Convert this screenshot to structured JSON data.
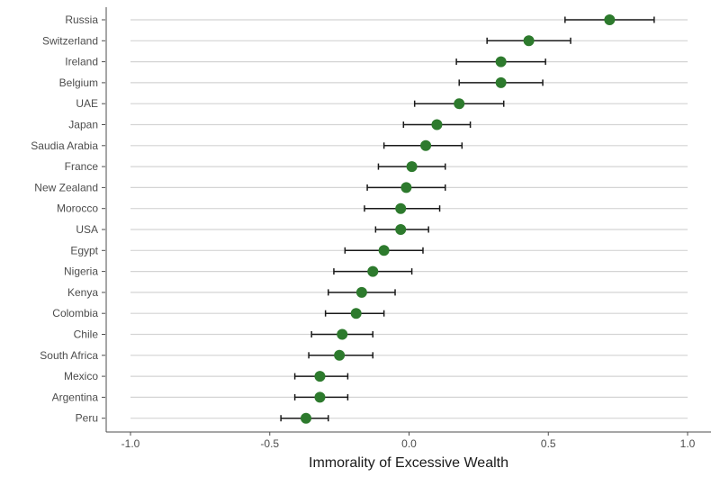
{
  "chart_data": {
    "type": "scatter",
    "title": "",
    "xlabel": "Immorality of Excessive Wealth",
    "ylabel": "",
    "xlim": [
      -1.05,
      1.05
    ],
    "x_ticks": [
      -1.0,
      -0.5,
      0.0,
      0.5,
      1.0
    ],
    "x_tick_labels": [
      "-1.0",
      "-0.5",
      "0.0",
      "0.5",
      "1.0"
    ],
    "grid": "horizontal",
    "legend": "none",
    "point_color": "#2d7a2d",
    "errorbar_color": "#1a1a1a",
    "categories": [
      "Russia",
      "Switzerland",
      "Ireland",
      "Belgium",
      "UAE",
      "Japan",
      "Saudia Arabia",
      "France",
      "New Zealand",
      "Morocco",
      "USA",
      "Egypt",
      "Nigeria",
      "Kenya",
      "Colombia",
      "Chile",
      "South Africa",
      "Mexico",
      "Argentina",
      "Peru"
    ],
    "values": [
      0.72,
      0.43,
      0.33,
      0.33,
      0.18,
      0.1,
      0.06,
      0.01,
      -0.01,
      -0.03,
      -0.03,
      -0.09,
      -0.13,
      -0.17,
      -0.19,
      -0.24,
      -0.25,
      -0.32,
      -0.32,
      -0.37
    ],
    "lower": [
      0.56,
      0.28,
      0.17,
      0.18,
      0.02,
      -0.02,
      -0.09,
      -0.11,
      -0.15,
      -0.16,
      -0.12,
      -0.23,
      -0.27,
      -0.29,
      -0.3,
      -0.35,
      -0.36,
      -0.41,
      -0.41,
      -0.46
    ],
    "upper": [
      0.88,
      0.58,
      0.49,
      0.48,
      0.34,
      0.22,
      0.19,
      0.13,
      0.13,
      0.11,
      0.07,
      0.05,
      0.01,
      -0.05,
      -0.09,
      -0.13,
      -0.13,
      -0.22,
      -0.22,
      -0.29
    ]
  }
}
